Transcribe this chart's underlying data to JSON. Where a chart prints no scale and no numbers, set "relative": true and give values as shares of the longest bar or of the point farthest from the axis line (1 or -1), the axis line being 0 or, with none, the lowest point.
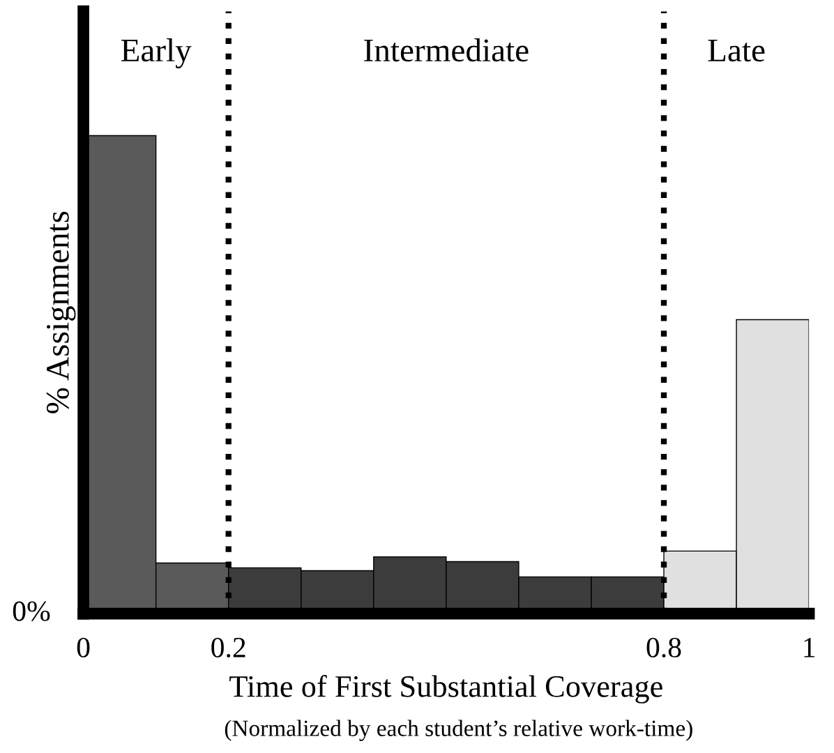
{
  "chart_data": {
    "type": "bar",
    "relative": true,
    "xlabel": "Time of First Substantial Coverage",
    "ylabel": "% Assignments",
    "x": [
      0.05,
      0.15,
      0.25,
      0.35,
      0.45,
      0.55,
      0.65,
      0.75,
      0.85,
      0.95
    ],
    "values": [
      1,
      0.106,
      0.096,
      0.09,
      0.119,
      0.109,
      0.077,
      0.077,
      0.131,
      0.615
    ],
    "colors": [
      "#5a5a5a",
      "#5a5a5a",
      "#3c3c3c",
      "#3c3c3c",
      "#3c3c3c",
      "#3c3c3c",
      "#3c3c3c",
      "#3c3c3c",
      "#e0e0e0",
      "#e0e0e0"
    ],
    "xlim": [
      0,
      1
    ],
    "xticks": [
      0,
      0.2,
      0.8,
      1
    ],
    "ref_lines": [
      {
        "axis": "x",
        "value": 0.2,
        "line_style": "dotted",
        "color": "#000000"
      },
      {
        "axis": "x",
        "value": 0.8,
        "line_style": "dotted",
        "color": "#000000"
      }
    ],
    "annotations": [
      "0%",
      "(Normalized by each student’s relative work-time)",
      "Early",
      "Intermediate",
      "Late"
    ],
    "grid": false,
    "legend": false
  }
}
